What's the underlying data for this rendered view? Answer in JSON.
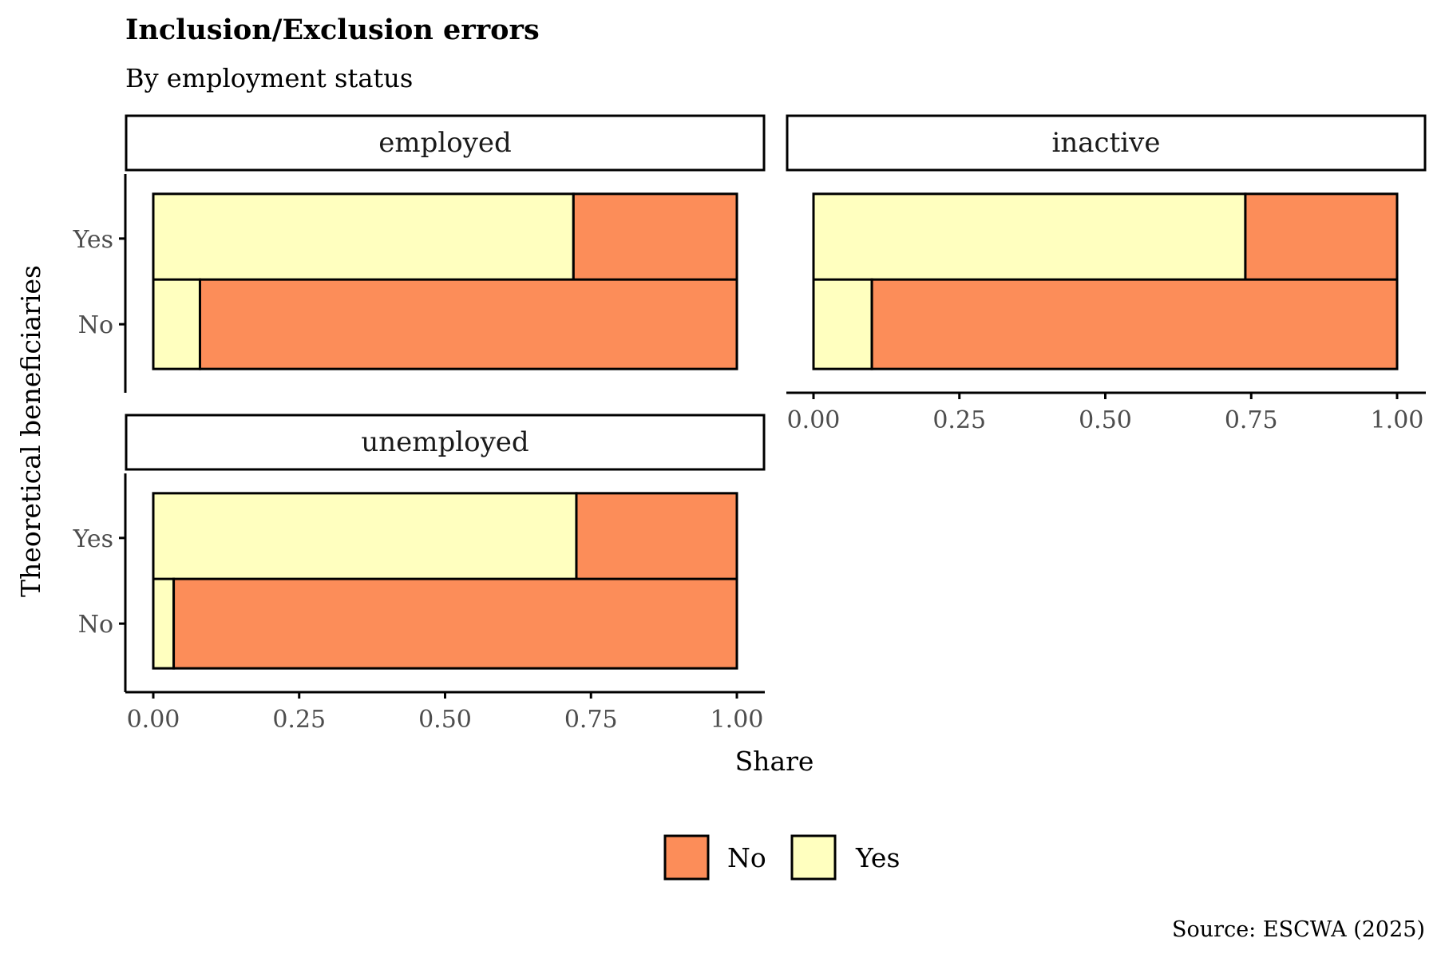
{
  "chart_data": {
    "type": "bar",
    "orientation": "horizontal",
    "stacked": true,
    "title": "Inclusion/Exclusion errors",
    "subtitle": "By employment status",
    "xlabel": "Share",
    "ylabel": "Theoretical beneficiaries",
    "xlim": [
      0,
      1
    ],
    "x_ticks": [
      "0.00",
      "0.25",
      "0.50",
      "0.75",
      "1.00"
    ],
    "categories": [
      "Yes",
      "No"
    ],
    "legend": {
      "position": "bottom",
      "entries": [
        {
          "label": "No",
          "color": "#FC8D59"
        },
        {
          "label": "Yes",
          "color": "#FFFFBF"
        }
      ]
    },
    "facets": [
      {
        "name": "employed",
        "series": [
          {
            "name": "Yes",
            "values": [
              0.72,
              0.08
            ]
          },
          {
            "name": "No",
            "values": [
              0.28,
              0.92
            ]
          }
        ]
      },
      {
        "name": "inactive",
        "series": [
          {
            "name": "Yes",
            "values": [
              0.74,
              0.1
            ]
          },
          {
            "name": "No",
            "values": [
              0.26,
              0.9
            ]
          }
        ]
      },
      {
        "name": "unemployed",
        "series": [
          {
            "name": "Yes",
            "values": [
              0.725,
              0.035
            ]
          },
          {
            "name": "No",
            "values": [
              0.275,
              0.965
            ]
          }
        ]
      }
    ],
    "caption": "Source: ESCWA (2025)",
    "grid": false
  }
}
